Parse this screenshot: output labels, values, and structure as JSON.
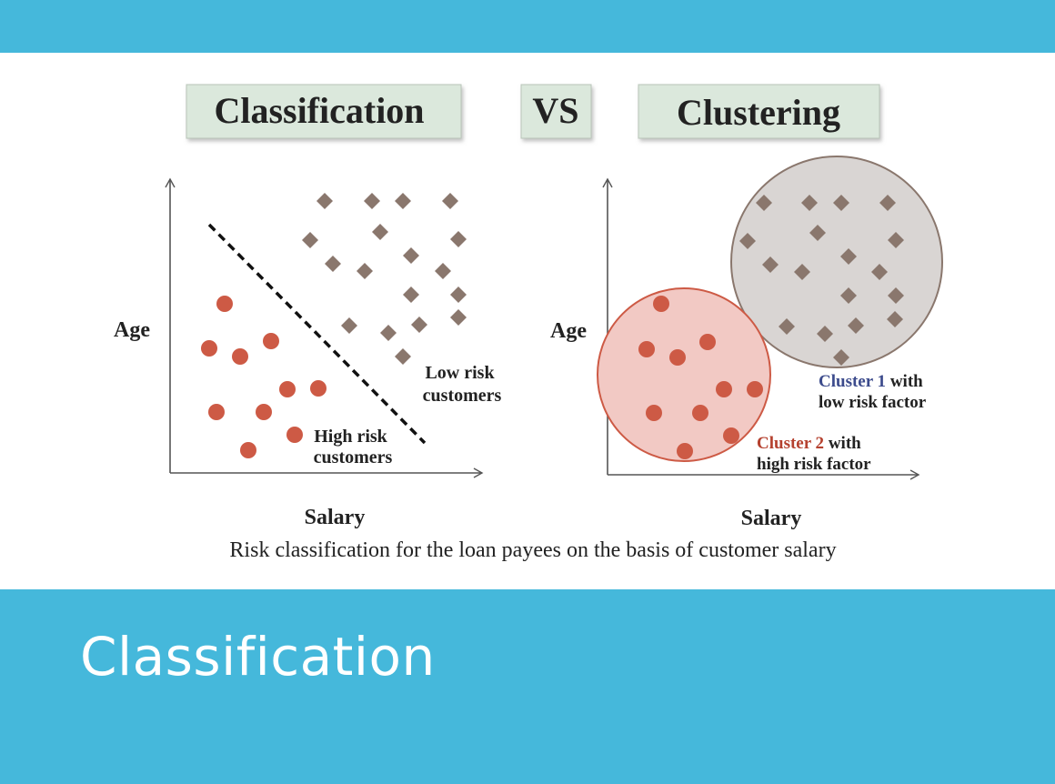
{
  "figure": {
    "headers": {
      "left": "Classification",
      "middle": "VS",
      "right": "Clustering"
    },
    "classification_panel": {
      "y_axis_label": "Age",
      "x_axis_label": "Salary",
      "low_risk_label": [
        "Low risk",
        "customers"
      ],
      "high_risk_label": [
        "High risk",
        "customers"
      ]
    },
    "clustering_panel": {
      "y_axis_label": "Age",
      "x_axis_label": "Salary",
      "cluster1_label": {
        "name": "Cluster 1",
        "suffix": " with",
        "line2": "low risk factor"
      },
      "cluster2_label": {
        "name": "Cluster 2",
        "suffix": " with",
        "line2": "high risk factor"
      }
    },
    "caption": "Risk classification for the loan payees on the basis of customer salary"
  },
  "slide": {
    "title": "Classification"
  },
  "colors": {
    "banner": "#45b8db",
    "high_risk_dot": "#cd5a45",
    "low_risk_diamond": "#8a776d",
    "cluster1_fill": "#d9d5d3",
    "cluster2_fill": "#f2c9c4",
    "header_box": "#dbe8dc"
  }
}
